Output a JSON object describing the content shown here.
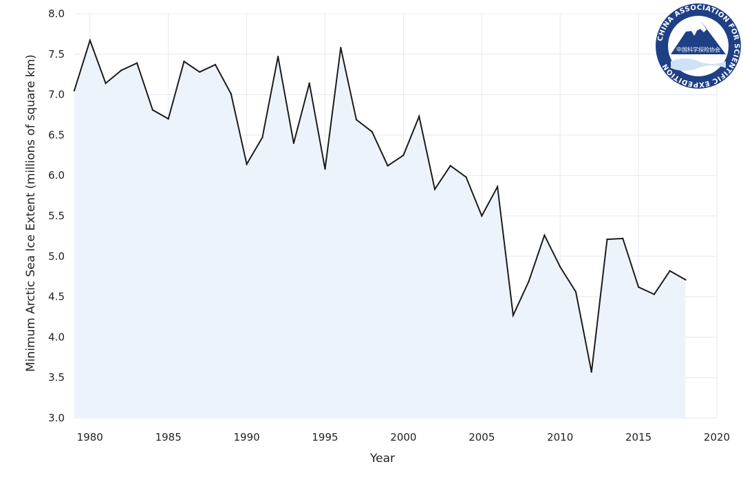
{
  "logo": {
    "ring_text": "CHINA ASSOCIATION FOR SCIENTIFIC EXPEDITION",
    "chinese_text": "中国科学探险协会",
    "colors": {
      "ring": "#1f3f86",
      "mountain": "#1f3f86",
      "snow": "#ffffff",
      "water": "#cde3f5"
    }
  },
  "chart_data": {
    "type": "area",
    "xlabel": "Year",
    "ylabel": "Minimum Arctic Sea Ice Extent (millions of square km)",
    "xlim": [
      1979,
      2020
    ],
    "ylim": [
      3.0,
      8.0
    ],
    "x_ticks": [
      1980,
      1985,
      1990,
      1995,
      2000,
      2005,
      2010,
      2015,
      2020
    ],
    "y_ticks": [
      "3.0",
      "3.5",
      "4.0",
      "4.5",
      "5.0",
      "5.5",
      "6.0",
      "6.5",
      "7.0",
      "7.5",
      "8.0"
    ],
    "grid": true,
    "line_color": "#1a1a1a",
    "fill_color": "#edf3fb",
    "series": [
      {
        "x": [
          1979,
          1980,
          1981,
          1982,
          1983,
          1984,
          1985,
          1986,
          1987,
          1988,
          1989,
          1990,
          1991,
          1992,
          1993,
          1994,
          1995,
          1996,
          1997,
          1998,
          1999,
          2000,
          2001,
          2002,
          2003,
          2004,
          2005,
          2006,
          2007,
          2008,
          2009,
          2010,
          2011,
          2012,
          2013,
          2014,
          2015,
          2016,
          2017,
          2018
        ],
        "values": [
          7.05,
          7.67,
          7.14,
          7.3,
          7.39,
          6.81,
          6.7,
          7.41,
          7.28,
          7.37,
          7.01,
          6.14,
          6.47,
          7.47,
          6.4,
          7.14,
          6.08,
          7.58,
          6.69,
          6.54,
          6.12,
          6.25,
          6.73,
          5.83,
          6.12,
          5.98,
          5.5,
          5.86,
          4.27,
          4.69,
          5.26,
          4.87,
          4.56,
          3.57,
          5.21,
          5.22,
          4.62,
          4.53,
          4.82,
          4.71
        ]
      }
    ]
  }
}
